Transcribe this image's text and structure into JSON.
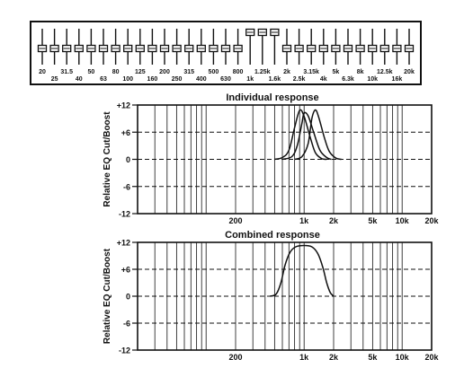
{
  "equalizer": {
    "bands": [
      {
        "label": "20",
        "row": "top"
      },
      {
        "label": "25",
        "row": "bottom"
      },
      {
        "label": "31.5",
        "row": "top"
      },
      {
        "label": "40",
        "row": "bottom"
      },
      {
        "label": "50",
        "row": "top"
      },
      {
        "label": "63",
        "row": "bottom"
      },
      {
        "label": "80",
        "row": "top"
      },
      {
        "label": "100",
        "row": "bottom"
      },
      {
        "label": "125",
        "row": "top"
      },
      {
        "label": "160",
        "row": "bottom"
      },
      {
        "label": "200",
        "row": "top"
      },
      {
        "label": "250",
        "row": "bottom"
      },
      {
        "label": "315",
        "row": "top"
      },
      {
        "label": "400",
        "row": "bottom"
      },
      {
        "label": "500",
        "row": "top"
      },
      {
        "label": "630",
        "row": "bottom"
      },
      {
        "label": "800",
        "row": "top"
      },
      {
        "label": "1k",
        "row": "bottom"
      },
      {
        "label": "1.25k",
        "row": "top"
      },
      {
        "label": "1.6k",
        "row": "bottom"
      },
      {
        "label": "2k",
        "row": "top"
      },
      {
        "label": "2.5k",
        "row": "bottom"
      },
      {
        "label": "3.15k",
        "row": "top"
      },
      {
        "label": "4k",
        "row": "bottom"
      },
      {
        "label": "5k",
        "row": "top"
      },
      {
        "label": "6.3k",
        "row": "bottom"
      },
      {
        "label": "8k",
        "row": "top"
      },
      {
        "label": "10k",
        "row": "bottom"
      },
      {
        "label": "12.5k",
        "row": "top"
      },
      {
        "label": "16k",
        "row": "bottom"
      },
      {
        "label": "20k",
        "row": "top"
      }
    ],
    "boost_db": [
      0,
      0,
      0,
      0,
      0,
      0,
      0,
      0,
      0,
      0,
      0,
      0,
      0,
      0,
      0,
      0,
      0,
      12,
      12,
      12,
      0,
      0,
      0,
      0,
      0,
      0,
      0,
      0,
      0,
      0,
      0
    ]
  },
  "chart_data": [
    {
      "type": "line",
      "title": "Individual response",
      "ylabel": "Relative EQ Cut/Boost",
      "xscale": "log",
      "xlim": [
        20,
        20000
      ],
      "ylim": [
        -12,
        12
      ],
      "xticks": [
        200,
        1000,
        2000,
        5000,
        10000,
        20000
      ],
      "xtick_labels": [
        "200",
        "1k",
        "2k",
        "5k",
        "10k",
        "20k"
      ],
      "yticks": [
        12,
        6,
        0,
        -6,
        -12
      ],
      "ytick_labels": [
        "+12",
        "+6",
        "0",
        "-6",
        "-12"
      ],
      "grid": true,
      "series": [
        {
          "values": [
            [
              500,
              0
            ],
            [
              600,
              0.4
            ],
            [
              700,
              2
            ],
            [
              800,
              7
            ],
            [
              900,
              10.8
            ],
            [
              1000,
              9.5
            ],
            [
              1150,
              5
            ],
            [
              1300,
              1.5
            ],
            [
              1500,
              0.2
            ],
            [
              1700,
              0
            ]
          ]
        },
        {
          "values": [
            [
              600,
              0
            ],
            [
              750,
              0.6
            ],
            [
              850,
              3
            ],
            [
              950,
              8
            ],
            [
              1000,
              10.2
            ],
            [
              1100,
              9.6
            ],
            [
              1250,
              6
            ],
            [
              1450,
              2
            ],
            [
              1700,
              0.4
            ],
            [
              1900,
              0
            ]
          ]
        },
        {
          "values": [
            [
              800,
              0
            ],
            [
              950,
              0.6
            ],
            [
              1100,
              3.5
            ],
            [
              1200,
              9
            ],
            [
              1300,
              10.9
            ],
            [
              1400,
              9.5
            ],
            [
              1600,
              5
            ],
            [
              1800,
              1.8
            ],
            [
              2100,
              0.3
            ],
            [
              2400,
              0
            ]
          ]
        }
      ]
    },
    {
      "type": "line",
      "title": "Combined response",
      "ylabel": "Relative EQ Cut/Boost",
      "xscale": "log",
      "xlim": [
        20,
        20000
      ],
      "ylim": [
        -12,
        12
      ],
      "xticks": [
        200,
        1000,
        2000,
        5000,
        10000,
        20000
      ],
      "xtick_labels": [
        "200",
        "1k",
        "2k",
        "5k",
        "10k",
        "20k"
      ],
      "yticks": [
        12,
        6,
        0,
        -6,
        -12
      ],
      "ytick_labels": [
        "+12",
        "+6",
        "0",
        "-6",
        "-12"
      ],
      "grid": true,
      "series": [
        {
          "values": [
            [
              450,
              0
            ],
            [
              520,
              0.5
            ],
            [
              580,
              3
            ],
            [
              640,
              7
            ],
            [
              720,
              9.8
            ],
            [
              820,
              11
            ],
            [
              1000,
              11.3
            ],
            [
              1200,
              11
            ],
            [
              1380,
              9.5
            ],
            [
              1550,
              6.5
            ],
            [
              1700,
              3
            ],
            [
              1850,
              0.8
            ],
            [
              2000,
              0
            ]
          ]
        }
      ]
    }
  ]
}
